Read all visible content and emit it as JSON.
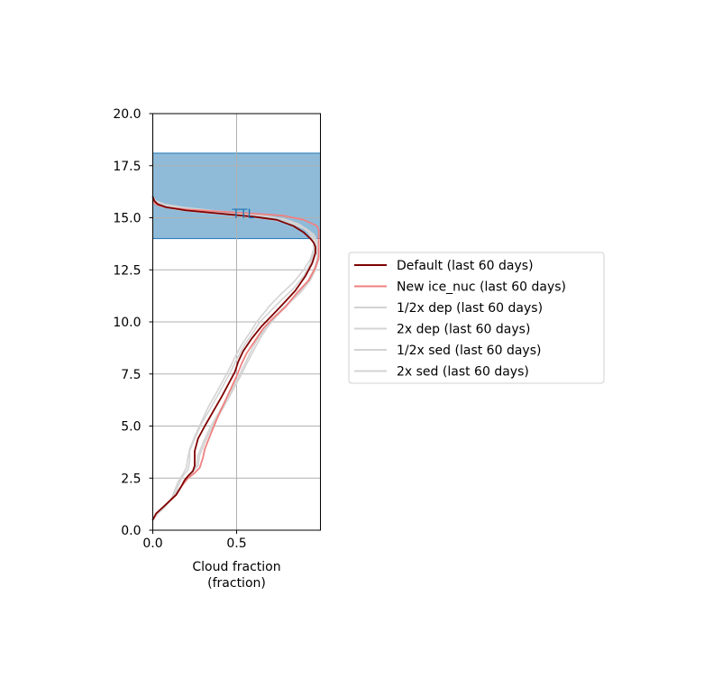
{
  "colors": {
    "ttl_band": "#1f77b4",
    "default_line": "#7f0000",
    "new_ice_nuc_line": "#f08080",
    "sensitivity_line": "#d3d3d3",
    "grid": "#b0b0b0"
  },
  "chart_data": {
    "type": "line",
    "xlabel_line1": "Cloud fraction",
    "xlabel_line2": "(fraction)",
    "xlim": [
      0.0,
      1.0
    ],
    "ylim": [
      0.0,
      20.0
    ],
    "x_ticks": [
      "0.0",
      "0.5"
    ],
    "y_ticks": [
      "0.0",
      "2.5",
      "5.0",
      "7.5",
      "10.0",
      "12.5",
      "15.0",
      "17.5",
      "20.0"
    ],
    "grid": true,
    "legend_position": "right, outside plot",
    "annotation": {
      "text": "TTL",
      "y_range": [
        14.0,
        18.1
      ],
      "text_x": 0.54,
      "text_y": 15.2
    },
    "series": [
      {
        "name": "Default (last 60 days)",
        "style": "default",
        "x": [
          0.0,
          0.02,
          0.06,
          0.1,
          0.14,
          0.17,
          0.19,
          0.21,
          0.24,
          0.25,
          0.25,
          0.27,
          0.31,
          0.36,
          0.41,
          0.45,
          0.49,
          0.51,
          0.54,
          0.59,
          0.65,
          0.71,
          0.77,
          0.85,
          0.91,
          0.95,
          0.97,
          0.97,
          0.96,
          0.94,
          0.9,
          0.84,
          0.74,
          0.6,
          0.4,
          0.2,
          0.08,
          0.03,
          0.01,
          0.0
        ],
        "y": [
          0.5,
          0.8,
          1.1,
          1.4,
          1.7,
          2.1,
          2.4,
          2.6,
          2.85,
          3.1,
          3.8,
          4.4,
          5.0,
          5.7,
          6.4,
          7.0,
          7.6,
          8.1,
          8.6,
          9.2,
          9.8,
          10.3,
          10.8,
          11.5,
          12.2,
          12.8,
          13.3,
          13.6,
          13.8,
          14.0,
          14.3,
          14.6,
          14.9,
          15.05,
          15.2,
          15.35,
          15.5,
          15.65,
          15.8,
          16.0
        ]
      },
      {
        "name": "New ice_nuc (last 60 days)",
        "style": "new",
        "x": [
          0.0,
          0.02,
          0.06,
          0.1,
          0.14,
          0.17,
          0.19,
          0.21,
          0.25,
          0.28,
          0.3,
          0.31,
          0.34,
          0.38,
          0.42,
          0.46,
          0.5,
          0.53,
          0.56,
          0.61,
          0.66,
          0.72,
          0.79,
          0.86,
          0.93,
          0.97,
          0.99,
          0.99,
          0.99,
          0.99,
          0.98,
          0.9,
          0.78,
          0.6,
          0.4,
          0.2,
          0.08,
          0.03,
          0.01,
          0.0
        ],
        "y": [
          0.5,
          0.8,
          1.1,
          1.4,
          1.7,
          2.1,
          2.3,
          2.5,
          2.75,
          3.0,
          3.5,
          3.9,
          4.5,
          5.3,
          6.0,
          6.7,
          7.4,
          8.0,
          8.5,
          9.1,
          9.7,
          10.2,
          10.7,
          11.4,
          12.0,
          12.6,
          13.1,
          13.6,
          14.1,
          14.4,
          14.6,
          14.9,
          15.1,
          15.2,
          15.3,
          15.4,
          15.5,
          15.6,
          15.7,
          15.8
        ]
      },
      {
        "name": "1/2x dep (last 60 days)",
        "style": "sens",
        "x": [
          0.0,
          0.03,
          0.07,
          0.11,
          0.14,
          0.16,
          0.18,
          0.21,
          0.22,
          0.22,
          0.25,
          0.29,
          0.34,
          0.39,
          0.43,
          0.47,
          0.5,
          0.54,
          0.59,
          0.64,
          0.7,
          0.76,
          0.84,
          0.9,
          0.94,
          0.96,
          0.96,
          0.95,
          0.93,
          0.89,
          0.82,
          0.7,
          0.55,
          0.35,
          0.18,
          0.07,
          0.02,
          0.0
        ],
        "y": [
          0.5,
          0.8,
          1.1,
          1.5,
          1.9,
          2.3,
          2.6,
          2.9,
          3.3,
          3.8,
          4.4,
          5.1,
          5.8,
          6.5,
          7.1,
          7.7,
          8.2,
          8.8,
          9.4,
          10.0,
          10.5,
          11.0,
          11.6,
          12.2,
          12.8,
          13.3,
          13.7,
          14.0,
          14.3,
          14.6,
          14.85,
          15.05,
          15.2,
          15.35,
          15.5,
          15.65,
          15.8,
          16.0
        ]
      },
      {
        "name": "2x dep (last 60 days)",
        "style": "sens",
        "x": [
          0.0,
          0.03,
          0.07,
          0.11,
          0.15,
          0.18,
          0.21,
          0.24,
          0.26,
          0.27,
          0.3,
          0.34,
          0.39,
          0.44,
          0.48,
          0.52,
          0.55,
          0.58,
          0.62,
          0.67,
          0.72,
          0.78,
          0.86,
          0.92,
          0.96,
          0.98,
          0.98,
          0.97,
          0.95,
          0.9,
          0.82,
          0.68,
          0.5,
          0.3,
          0.14,
          0.05,
          0.01,
          0.0
        ],
        "y": [
          0.5,
          0.8,
          1.1,
          1.5,
          1.9,
          2.2,
          2.5,
          2.8,
          3.1,
          3.6,
          4.2,
          4.9,
          5.6,
          6.3,
          6.9,
          7.5,
          8.0,
          8.5,
          9.1,
          9.7,
          10.2,
          10.7,
          11.3,
          11.9,
          12.5,
          13.0,
          13.5,
          13.9,
          14.2,
          14.5,
          14.75,
          14.95,
          15.1,
          15.25,
          15.4,
          15.55,
          15.7,
          15.9
        ]
      },
      {
        "name": "1/2x sed (last 60 days)",
        "style": "sens",
        "x": [
          0.0,
          0.03,
          0.07,
          0.11,
          0.13,
          0.15,
          0.18,
          0.2,
          0.21,
          0.22,
          0.25,
          0.29,
          0.33,
          0.38,
          0.42,
          0.46,
          0.49,
          0.53,
          0.58,
          0.62,
          0.66,
          0.7,
          0.76,
          0.84,
          0.9,
          0.94,
          0.96,
          0.96,
          0.95,
          0.92,
          0.87,
          0.78,
          0.64,
          0.45,
          0.25,
          0.1,
          0.03,
          0.0
        ],
        "y": [
          0.5,
          0.8,
          1.1,
          1.5,
          1.9,
          2.3,
          2.7,
          3.0,
          3.5,
          3.9,
          4.5,
          5.2,
          5.9,
          6.6,
          7.2,
          7.8,
          8.3,
          8.9,
          9.5,
          10.0,
          10.4,
          10.8,
          11.3,
          11.9,
          12.5,
          13.0,
          13.5,
          13.8,
          14.1,
          14.4,
          14.7,
          14.95,
          15.1,
          15.25,
          15.4,
          15.55,
          15.7,
          15.9
        ]
      },
      {
        "name": "2x sed (last 60 days)",
        "style": "sens",
        "x": [
          0.0,
          0.03,
          0.07,
          0.11,
          0.15,
          0.18,
          0.21,
          0.24,
          0.27,
          0.28,
          0.31,
          0.35,
          0.4,
          0.45,
          0.49,
          0.53,
          0.56,
          0.6,
          0.64,
          0.68,
          0.73,
          0.8,
          0.88,
          0.94,
          0.97,
          0.99,
          0.99,
          0.98,
          0.96,
          0.91,
          0.83,
          0.7,
          0.52,
          0.32,
          0.15,
          0.05,
          0.01,
          0.0
        ],
        "y": [
          0.5,
          0.8,
          1.1,
          1.5,
          1.9,
          2.2,
          2.5,
          2.8,
          3.1,
          3.6,
          4.2,
          4.9,
          5.6,
          6.3,
          6.9,
          7.5,
          8.0,
          8.6,
          9.2,
          9.7,
          10.2,
          10.8,
          11.4,
          12.0,
          12.5,
          13.0,
          13.5,
          13.9,
          14.2,
          14.5,
          14.75,
          14.95,
          15.1,
          15.25,
          15.4,
          15.55,
          15.7,
          15.9
        ]
      }
    ]
  }
}
